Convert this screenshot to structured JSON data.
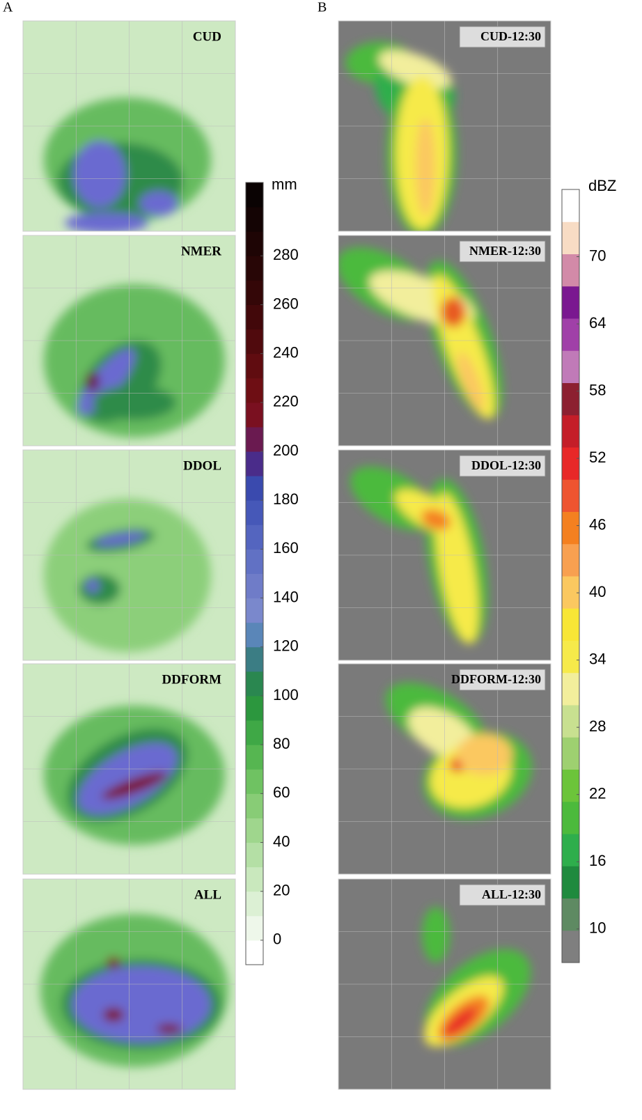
{
  "panel_a": {
    "label": "A",
    "maps": [
      "CUD",
      "NMER",
      "DDOL",
      "DDFORM",
      "ALL"
    ],
    "colorbar": {
      "unit": "mm",
      "lim": [
        -10,
        310
      ],
      "ticks": [
        0,
        20,
        40,
        60,
        80,
        100,
        120,
        140,
        160,
        180,
        200,
        220,
        240,
        260,
        280
      ],
      "colors": [
        "#ffffff",
        "#eef7ea",
        "#dcf0d4",
        "#c9e8bd",
        "#b4dfa5",
        "#9fd68d",
        "#88cc76",
        "#6fc262",
        "#56b651",
        "#3fa846",
        "#2c973e",
        "#2a8750",
        "#3b7d84",
        "#5a86b8",
        "#7a88cc",
        "#6f7cc8",
        "#6171c4",
        "#5465bf",
        "#4658b8",
        "#3a4aae",
        "#4a2c8a",
        "#6a1a50",
        "#7a1020",
        "#6e0e14",
        "#600c10",
        "#500a0d",
        "#42080a",
        "#340708",
        "#280606",
        "#1e0505",
        "#140404",
        "#0a0303"
      ]
    }
  },
  "panel_b": {
    "label": "B",
    "maps": [
      "CUD-12:30",
      "NMER-12:30",
      "DDOL-12:30",
      "DDFORM-12:30",
      "ALL-12:30"
    ],
    "colorbar": {
      "unit": "dBZ",
      "lim": [
        7,
        76
      ],
      "ticks": [
        10,
        16,
        22,
        28,
        34,
        40,
        46,
        52,
        58,
        64,
        70
      ],
      "colors": [
        "#7f7f7f",
        "#5e8a62",
        "#1f8a3e",
        "#2eae4c",
        "#4cba3c",
        "#6cc43a",
        "#9ed070",
        "#c8e090",
        "#f2ee9c",
        "#f6ea4a",
        "#f8e636",
        "#fbc860",
        "#f8a050",
        "#f48020",
        "#ee5430",
        "#e82828",
        "#c41e28",
        "#8c2030",
        "#c07ab8",
        "#a040a8",
        "#7a1890",
        "#d28aa8",
        "#f8dcc4",
        "#ffffff"
      ]
    }
  }
}
